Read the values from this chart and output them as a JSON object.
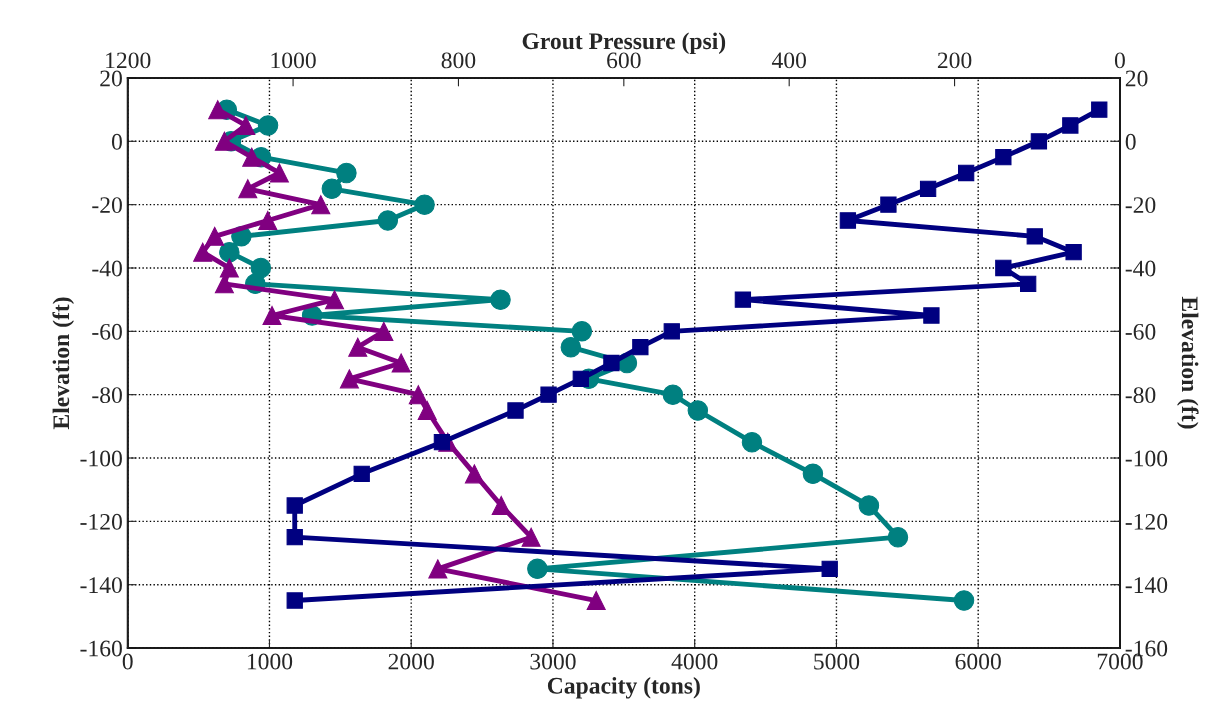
{
  "chart_data": {
    "type": "line",
    "xlabel": "Capacity (tons)",
    "x2label": "Grout Pressure (psi)",
    "ylabel": "Elevation (ft)",
    "y2label": "Elevation (ft)",
    "xlim": [
      0,
      7000
    ],
    "xticks": [
      0,
      1000,
      2000,
      3000,
      4000,
      5000,
      6000,
      7000
    ],
    "x2lim": [
      1200,
      0
    ],
    "x2ticks": [
      1200,
      1000,
      800,
      600,
      400,
      200,
      0
    ],
    "ylim": [
      -160,
      20
    ],
    "yticks": [
      -160,
      -140,
      -120,
      -100,
      -80,
      -60,
      -40,
      -20,
      0,
      20
    ],
    "y2lim": [
      -160,
      20
    ],
    "y2ticks": [
      -160,
      -140,
      -120,
      -100,
      -80,
      -60,
      -40,
      -20,
      0,
      20
    ],
    "grid": true,
    "line_style": "solid",
    "series": [
      {
        "color": "#008080",
        "marker": "circle",
        "x": [
          699,
          990,
          729,
          941,
          1543,
          1440,
          2094,
          1835,
          802,
          717,
          939,
          900,
          2630,
          1301,
          3204,
          3126,
          3522,
          3253,
          3846,
          4022,
          4404,
          4834,
          5229,
          5434,
          2890,
          5900
        ],
        "values": [
          10,
          5,
          0,
          -5,
          -10,
          -15,
          -20,
          -25,
          -30,
          -35,
          -40,
          -45,
          -50,
          -55,
          -60,
          -65,
          -70,
          -75,
          -80,
          -85,
          -95,
          -105,
          -115,
          -125,
          -135,
          -145
        ]
      },
      {
        "color": "#800080",
        "marker": "triangle",
        "x": [
          635,
          833,
          682,
          875,
          1070,
          847,
          1362,
          988,
          614,
          529,
          717,
          682,
          1459,
          1018,
          1807,
          1623,
          1929,
          1564,
          2050,
          2113,
          2258,
          2446,
          2635,
          2846,
          2188,
          3305
        ],
        "values": [
          10,
          5,
          0,
          -5,
          -10,
          -15,
          -20,
          -25,
          -30,
          -35,
          -40,
          -45,
          -50,
          -55,
          -60,
          -65,
          -70,
          -75,
          -80,
          -85,
          -95,
          -105,
          -115,
          -125,
          -135,
          -145
        ]
      },
      {
        "color": "#000080",
        "marker": "square",
        "axis": "x2",
        "x": [
          25,
          60,
          98,
          141,
          186,
          232,
          280,
          329,
          103,
          56,
          141,
          111,
          456,
          228,
          542,
          580,
          615,
          652,
          691,
          731,
          820,
          917,
          998,
          998,
          351,
          998
        ],
        "values": [
          10,
          5,
          0,
          -5,
          -10,
          -15,
          -20,
          -25,
          -30,
          -35,
          -40,
          -45,
          -50,
          -55,
          -60,
          -65,
          -70,
          -75,
          -80,
          -85,
          -95,
          -105,
          -115,
          -125,
          -135,
          -145
        ]
      }
    ]
  }
}
